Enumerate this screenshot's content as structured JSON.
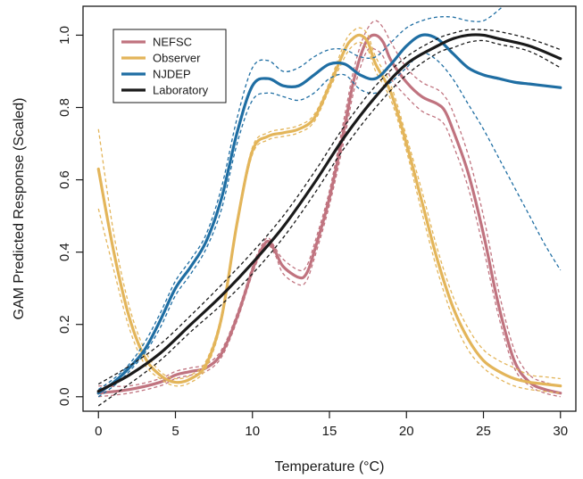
{
  "chart_data": {
    "type": "line",
    "title": "",
    "xlabel": "Temperature (°C)",
    "ylabel": "GAM Predicted Response (Scaled)",
    "xlim": [
      -1,
      31
    ],
    "ylim": [
      -0.04,
      1.08
    ],
    "x_ticks": [
      0,
      5,
      10,
      15,
      20,
      25,
      30
    ],
    "y_ticks": [
      0.0,
      0.2,
      0.4,
      0.6,
      0.8,
      1.0
    ],
    "x_tick_labels": [
      "0",
      "5",
      "10",
      "15",
      "20",
      "25",
      "30"
    ],
    "y_tick_labels": [
      "0.0",
      "0.2",
      "0.4",
      "0.6",
      "0.8",
      "1.0"
    ],
    "grid": false,
    "legend_position": "top-left",
    "legend_labels": [
      "NEFSC",
      "Observer",
      "NJDEP",
      "Laboratory"
    ],
    "series": [
      {
        "name": "NEFSC",
        "color": "#c0737f",
        "x": [
          0,
          2,
          4,
          5,
          6,
          7,
          8,
          9,
          10,
          10.5,
          11,
          11.5,
          12,
          13,
          13.5,
          14,
          15,
          16,
          16.5,
          17,
          17.5,
          18,
          18.5,
          19,
          20,
          21,
          22,
          22.5,
          23,
          24,
          25,
          26,
          27,
          28,
          29,
          30
        ],
        "y": [
          0.01,
          0.02,
          0.04,
          0.06,
          0.07,
          0.08,
          0.12,
          0.22,
          0.35,
          0.4,
          0.43,
          0.4,
          0.36,
          0.33,
          0.34,
          0.4,
          0.55,
          0.75,
          0.86,
          0.94,
          0.99,
          1.0,
          0.98,
          0.93,
          0.87,
          0.83,
          0.81,
          0.79,
          0.74,
          0.62,
          0.45,
          0.25,
          0.1,
          0.04,
          0.02,
          0.01
        ],
        "upper": [
          0.03,
          0.03,
          0.05,
          0.07,
          0.08,
          0.09,
          0.13,
          0.23,
          0.36,
          0.41,
          0.44,
          0.41,
          0.38,
          0.35,
          0.36,
          0.42,
          0.57,
          0.78,
          0.89,
          0.97,
          1.02,
          1.04,
          1.02,
          0.98,
          0.91,
          0.87,
          0.85,
          0.83,
          0.79,
          0.67,
          0.5,
          0.29,
          0.13,
          0.06,
          0.04,
          0.03
        ],
        "lower": [
          0.0,
          0.01,
          0.03,
          0.05,
          0.06,
          0.07,
          0.11,
          0.21,
          0.34,
          0.39,
          0.42,
          0.39,
          0.34,
          0.31,
          0.32,
          0.38,
          0.53,
          0.72,
          0.83,
          0.91,
          0.96,
          0.96,
          0.94,
          0.88,
          0.83,
          0.79,
          0.77,
          0.75,
          0.7,
          0.58,
          0.41,
          0.22,
          0.08,
          0.03,
          0.01,
          0.0
        ]
      },
      {
        "name": "Observer",
        "color": "#e3b55a",
        "x": [
          0,
          1,
          2,
          3,
          4,
          5,
          6,
          7,
          8,
          9,
          10,
          11,
          12,
          13,
          14,
          15,
          16,
          16.5,
          17,
          17.5,
          18,
          19,
          20,
          21,
          22,
          23,
          24,
          25,
          26,
          27,
          28,
          29,
          30
        ],
        "y": [
          0.63,
          0.4,
          0.22,
          0.11,
          0.06,
          0.04,
          0.05,
          0.09,
          0.22,
          0.48,
          0.68,
          0.72,
          0.73,
          0.74,
          0.77,
          0.86,
          0.96,
          0.99,
          1.0,
          0.98,
          0.92,
          0.84,
          0.7,
          0.54,
          0.38,
          0.25,
          0.16,
          0.1,
          0.07,
          0.05,
          0.04,
          0.035,
          0.03
        ],
        "upper": [
          0.74,
          0.45,
          0.25,
          0.13,
          0.07,
          0.05,
          0.06,
          0.1,
          0.23,
          0.49,
          0.69,
          0.73,
          0.74,
          0.75,
          0.78,
          0.87,
          0.98,
          1.01,
          1.02,
          1.0,
          0.94,
          0.86,
          0.72,
          0.57,
          0.41,
          0.28,
          0.19,
          0.13,
          0.1,
          0.08,
          0.06,
          0.055,
          0.05
        ],
        "lower": [
          0.52,
          0.35,
          0.19,
          0.09,
          0.05,
          0.03,
          0.04,
          0.08,
          0.21,
          0.47,
          0.67,
          0.71,
          0.72,
          0.73,
          0.76,
          0.85,
          0.94,
          0.97,
          0.98,
          0.96,
          0.9,
          0.82,
          0.68,
          0.51,
          0.35,
          0.22,
          0.13,
          0.08,
          0.05,
          0.03,
          0.02,
          0.015,
          0.01
        ]
      },
      {
        "name": "NJDEP",
        "color": "#1f6ea3",
        "x": [
          0,
          1,
          2,
          3,
          4,
          5,
          6,
          7,
          8,
          9,
          10,
          11,
          12,
          13,
          14,
          15,
          16,
          17,
          18,
          19,
          20,
          21,
          22,
          23,
          24,
          25,
          26,
          27,
          28,
          29,
          30
        ],
        "y": [
          0.01,
          0.04,
          0.08,
          0.13,
          0.21,
          0.3,
          0.36,
          0.43,
          0.55,
          0.73,
          0.86,
          0.88,
          0.86,
          0.86,
          0.89,
          0.92,
          0.92,
          0.89,
          0.88,
          0.92,
          0.97,
          1.0,
          0.99,
          0.95,
          0.91,
          0.89,
          0.88,
          0.87,
          0.865,
          0.86,
          0.855
        ],
        "upper": [
          0.02,
          0.05,
          0.09,
          0.15,
          0.23,
          0.32,
          0.38,
          0.45,
          0.58,
          0.77,
          0.91,
          0.93,
          0.9,
          0.91,
          0.94,
          0.96,
          0.96,
          0.94,
          0.94,
          0.98,
          1.02,
          1.04,
          1.05,
          1.05,
          1.04,
          1.04,
          1.07,
          1.11,
          1.15,
          1.2,
          1.25
        ],
        "lower": [
          0.0,
          0.03,
          0.07,
          0.12,
          0.19,
          0.28,
          0.34,
          0.41,
          0.52,
          0.7,
          0.82,
          0.84,
          0.83,
          0.82,
          0.84,
          0.88,
          0.89,
          0.85,
          0.84,
          0.87,
          0.91,
          0.95,
          0.93,
          0.88,
          0.81,
          0.74,
          0.66,
          0.58,
          0.5,
          0.42,
          0.35
        ]
      },
      {
        "name": "Laboratory",
        "color": "#1a1a1a",
        "x": [
          0,
          2,
          4,
          6,
          8,
          10,
          12,
          14,
          16,
          18,
          20,
          22,
          23,
          24,
          25,
          26,
          28,
          30
        ],
        "y": [
          0.015,
          0.06,
          0.12,
          0.2,
          0.28,
          0.37,
          0.47,
          0.59,
          0.72,
          0.83,
          0.92,
          0.97,
          0.99,
          1.0,
          1.0,
          0.99,
          0.97,
          0.935
        ],
        "upper": [
          0.035,
          0.085,
          0.145,
          0.225,
          0.31,
          0.4,
          0.5,
          0.62,
          0.75,
          0.86,
          0.94,
          0.99,
          1.005,
          1.015,
          1.015,
          1.01,
          0.99,
          0.96
        ],
        "lower": [
          -0.025,
          0.035,
          0.1,
          0.18,
          0.255,
          0.34,
          0.44,
          0.56,
          0.69,
          0.8,
          0.89,
          0.95,
          0.965,
          0.98,
          0.985,
          0.975,
          0.955,
          0.91
        ]
      }
    ]
  }
}
